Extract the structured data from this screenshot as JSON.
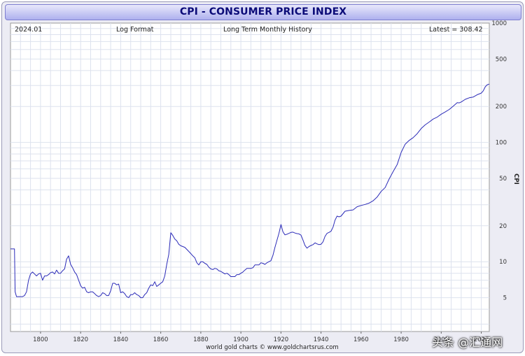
{
  "title": "CPI - CONSUMER PRICE INDEX",
  "info": {
    "date": "2024.01",
    "format": "Log Format",
    "history": "Long Term Monthly History",
    "latest": "Latest = 308.42"
  },
  "credit": "world gold charts © www.goldchartsrus.com",
  "watermark": "头条 @汇通网",
  "colors": {
    "line": "#2b2bb8",
    "title_text": "#0b0b78",
    "title_bg": "#b4b6ef",
    "grid": "#dde2ee"
  },
  "chart_data": {
    "type": "line",
    "title": "CPI - CONSUMER PRICE INDEX",
    "ylabel": "CPI",
    "xlabel": "",
    "y_scale": "log",
    "ylim": [
      2.6,
      1000
    ],
    "xlim": [
      1785,
      2024
    ],
    "x_ticks": [
      1800,
      1820,
      1840,
      1860,
      1880,
      1900,
      1920,
      1940,
      1960,
      1980,
      2000,
      2020
    ],
    "x_tick_labels": [
      "1800",
      "1820",
      "1840",
      "1860",
      "1880",
      "1900",
      "1920",
      "1940",
      "1960",
      "1980",
      "2000",
      "2020"
    ],
    "y_ticks": [
      5,
      10,
      20,
      50,
      100,
      200,
      500,
      1000
    ],
    "y_tick_labels": [
      "5",
      "10",
      "20",
      "50",
      "100",
      "200",
      "500",
      "1000"
    ],
    "grid": true,
    "series": [
      {
        "x": [
          1785,
          1787,
          1787.3,
          1788,
          1789,
          1790,
          1791,
          1792,
          1793,
          1794,
          1795,
          1796,
          1797,
          1798,
          1799,
          1800,
          1801,
          1802,
          1803,
          1804,
          1805,
          1806,
          1807,
          1808,
          1809,
          1810,
          1811,
          1812,
          1813,
          1814,
          1815,
          1816,
          1817,
          1818,
          1819,
          1820,
          1821,
          1822,
          1823,
          1824,
          1825,
          1826,
          1827,
          1828,
          1829,
          1830,
          1831,
          1832,
          1833,
          1834,
          1835,
          1836,
          1837,
          1838,
          1839,
          1840,
          1841,
          1842,
          1843,
          1844,
          1845,
          1846,
          1847,
          1848,
          1849,
          1850,
          1851,
          1852,
          1853,
          1854,
          1855,
          1856,
          1857,
          1858,
          1859,
          1860,
          1861,
          1862,
          1863,
          1864,
          1865,
          1866,
          1867,
          1868,
          1869,
          1870,
          1871,
          1872,
          1873,
          1874,
          1875,
          1876,
          1877,
          1878,
          1879,
          1880,
          1881,
          1882,
          1883,
          1884,
          1885,
          1886,
          1887,
          1888,
          1889,
          1890,
          1891,
          1892,
          1893,
          1894,
          1895,
          1896,
          1897,
          1898,
          1899,
          1900,
          1901,
          1902,
          1903,
          1904,
          1905,
          1906,
          1907,
          1908,
          1909,
          1910,
          1911,
          1912,
          1913,
          1914,
          1915,
          1916,
          1917,
          1918,
          1919,
          1920,
          1921,
          1922,
          1923,
          1924,
          1925,
          1926,
          1927,
          1928,
          1929,
          1930,
          1931,
          1932,
          1933,
          1934,
          1935,
          1936,
          1937,
          1938,
          1939,
          1940,
          1941,
          1942,
          1943,
          1944,
          1945,
          1946,
          1947,
          1948,
          1949,
          1950,
          1952,
          1954,
          1956,
          1958,
          1960,
          1962,
          1964,
          1966,
          1968,
          1970,
          1972,
          1974,
          1976,
          1978,
          1980,
          1982,
          1984,
          1986,
          1988,
          1990,
          1992,
          1994,
          1996,
          1998,
          2000,
          2002,
          2004,
          2006,
          2008,
          2009,
          2010,
          2012,
          2014,
          2016,
          2018,
          2020,
          2021,
          2022,
          2023,
          2024
        ],
        "values": [
          12.8,
          12.8,
          5.6,
          5.1,
          5.1,
          5.1,
          5.1,
          5.2,
          5.6,
          7.0,
          7.9,
          8.2,
          7.9,
          7.6,
          7.9,
          8.0,
          7.0,
          7.6,
          7.6,
          7.8,
          8.1,
          8.2,
          7.9,
          8.5,
          8.0,
          8.0,
          8.4,
          8.7,
          10.5,
          11.2,
          9.5,
          8.9,
          8.2,
          7.8,
          7.0,
          6.3,
          6.0,
          6.1,
          5.6,
          5.5,
          5.6,
          5.6,
          5.4,
          5.2,
          5.1,
          5.2,
          5.5,
          5.4,
          5.2,
          5.2,
          5.7,
          6.6,
          6.6,
          6.4,
          6.5,
          5.5,
          5.6,
          5.4,
          5.1,
          5.0,
          5.3,
          5.3,
          5.5,
          5.3,
          5.2,
          5.0,
          5.0,
          5.3,
          5.5,
          6.0,
          6.4,
          6.3,
          6.8,
          6.2,
          6.4,
          6.6,
          6.8,
          7.6,
          9.5,
          11.5,
          17.5,
          16.6,
          15.5,
          15.0,
          14.0,
          13.6,
          13.4,
          13.2,
          12.7,
          12.2,
          11.7,
          11.2,
          10.8,
          9.8,
          9.4,
          10.0,
          10.0,
          9.7,
          9.5,
          9.0,
          8.7,
          8.6,
          8.8,
          8.7,
          8.4,
          8.3,
          8.1,
          7.9,
          8.0,
          7.8,
          7.5,
          7.5,
          7.5,
          7.8,
          7.8,
          8.0,
          8.2,
          8.5,
          8.8,
          8.8,
          8.8,
          8.9,
          9.4,
          9.4,
          9.4,
          9.8,
          9.7,
          9.5,
          9.8,
          10.0,
          10.2,
          11.3,
          13.2,
          15.1,
          17.3,
          20.5,
          17.8,
          16.8,
          17.0,
          17.3,
          17.6,
          17.7,
          17.4,
          17.2,
          17.1,
          16.7,
          15.2,
          13.7,
          13.0,
          13.4,
          13.7,
          13.9,
          14.4,
          14.1,
          13.9,
          14.0,
          14.7,
          16.3,
          17.3,
          17.6,
          18.0,
          19.5,
          22.3,
          24.1,
          23.8,
          24.1,
          26.5,
          26.9,
          27.2,
          28.9,
          29.6,
          30.2,
          31.0,
          32.4,
          34.8,
          38.8,
          41.8,
          49.3,
          56.9,
          65.2,
          82.4,
          96.5,
          103.9,
          109.6,
          118.3,
          130.7,
          140.3,
          148.2,
          156.9,
          163.0,
          172.2,
          179.9,
          188.9,
          201.6,
          215.3,
          214.5,
          218.1,
          229.6,
          236.7,
          240.0,
          251.1,
          258.8,
          270.9,
          292.7,
          304.7,
          308.4
        ]
      }
    ]
  }
}
